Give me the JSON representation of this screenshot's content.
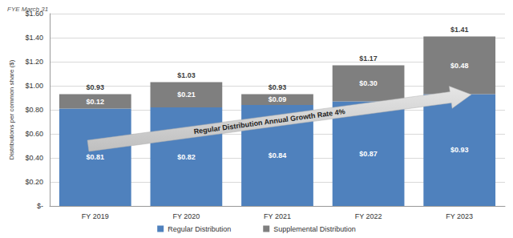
{
  "chart_data": {
    "type": "bar",
    "subtitle": "FYE March 31",
    "ylabel": "Distributions per common share ($)",
    "categories": [
      "FY 2019",
      "FY 2020",
      "FY 2021",
      "FY 2022",
      "FY 2023"
    ],
    "series": [
      {
        "name": "Regular Distribution",
        "color": "#4f81bd",
        "values": [
          0.81,
          0.82,
          0.84,
          0.87,
          0.93
        ],
        "value_labels": [
          "$0.81",
          "$0.82",
          "$0.84",
          "$0.87",
          "$0.93"
        ]
      },
      {
        "name": "Supplemental Distribution",
        "color": "#7f7f7f",
        "values": [
          0.12,
          0.21,
          0.09,
          0.3,
          0.48
        ],
        "value_labels": [
          "$0.12",
          "$0.21",
          "$0.09",
          "$0.30",
          "$0.48"
        ]
      }
    ],
    "totals": {
      "values": [
        0.93,
        1.03,
        0.93,
        1.17,
        1.41
      ],
      "value_labels": [
        "$0.93",
        "$1.03",
        "$0.93",
        "$1.17",
        "$1.41"
      ]
    },
    "annotations": [
      "Regular Distribution Annual Growth Rate 4%"
    ],
    "stacked": true,
    "data_labels": true,
    "grid": true,
    "legend": "bottom",
    "ylim": [
      0,
      1.6
    ],
    "yticks": [
      {
        "value": 0,
        "label": "$-"
      },
      {
        "value": 0.2,
        "label": "$0.20"
      },
      {
        "value": 0.4,
        "label": "$0.40"
      },
      {
        "value": 0.6,
        "label": "$0.60"
      },
      {
        "value": 0.8,
        "label": "$0.80"
      },
      {
        "value": 1.0,
        "label": "$1.00"
      },
      {
        "value": 1.2,
        "label": "$1.20"
      },
      {
        "value": 1.4,
        "label": "$1.40"
      },
      {
        "value": 1.6,
        "label": "$1.60"
      }
    ]
  }
}
